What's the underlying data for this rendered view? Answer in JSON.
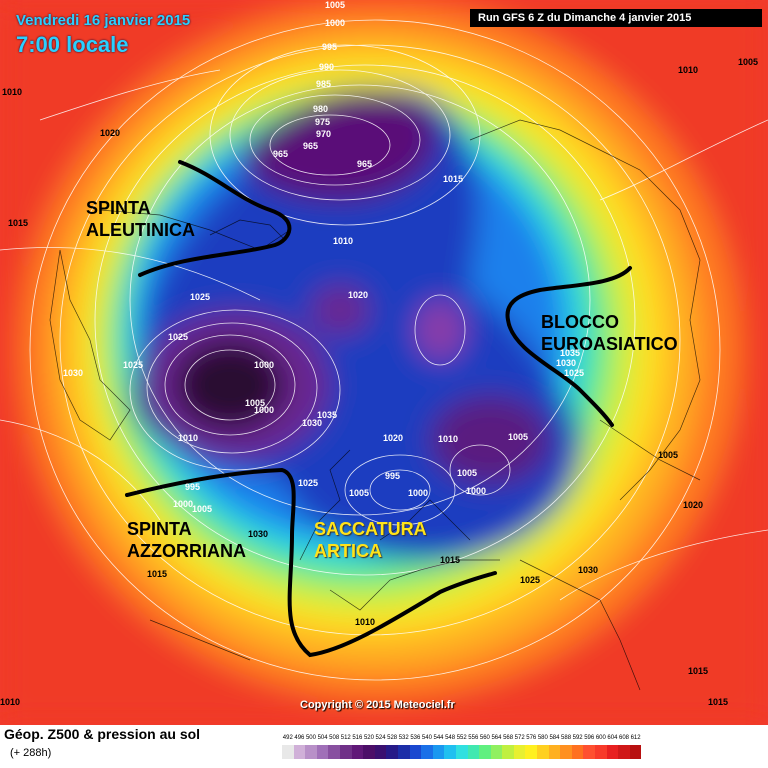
{
  "header": {
    "date": "Vendredi 16 janvier 2015",
    "time": "7:00 locale",
    "run": "Run GFS 6 Z du Dimanche 4 janvier 2015"
  },
  "regions": {
    "aleutian": [
      "SPINTA",
      "ALEUTINICA"
    ],
    "azores": [
      "SPINTA",
      "AZZORRIANA"
    ],
    "arctic": [
      "SACCATURA",
      "ARTICA"
    ],
    "eurasian": [
      "BLOCCO",
      "EUROASIATICO"
    ]
  },
  "pressure_labels": [
    "1010",
    "1005",
    "1000",
    "995",
    "990",
    "985",
    "980",
    "975",
    "970",
    "965",
    "965",
    "965",
    "1020",
    "1015",
    "1010",
    "1015",
    "1010",
    "1005",
    "1025",
    "1020",
    "1025",
    "1030",
    "1025",
    "1000",
    "1005",
    "1000",
    "1010",
    "1035",
    "1030",
    "1020",
    "1010",
    "1005",
    "1025",
    "995",
    "1005",
    "1000",
    "1005",
    "1000",
    "1035",
    "1030",
    "1025",
    "995",
    "1000",
    "1005",
    "1030",
    "1015",
    "1015",
    "1025",
    "1030",
    "1020",
    "1015",
    "1010",
    "1010",
    "1015",
    "1005"
  ],
  "copyright": "Copyright © 2015 Meteociel.fr",
  "legend": {
    "title": "Géop. Z500 & pression au sol",
    "subtitle": "(+ 288h)",
    "scale": [
      "492",
      "496",
      "500",
      "504",
      "508",
      "512",
      "516",
      "520",
      "524",
      "528",
      "532",
      "536",
      "540",
      "544",
      "548",
      "552",
      "556",
      "560",
      "564",
      "568",
      "572",
      "576",
      "580",
      "584",
      "588",
      "592",
      "596",
      "600",
      "604",
      "608",
      "612"
    ],
    "colors": [
      "#e8e8e8",
      "#d0b0d8",
      "#b890c8",
      "#a070b8",
      "#8850a0",
      "#703088",
      "#601878",
      "#4c0e68",
      "#3a1070",
      "#261a88",
      "#1c2ea8",
      "#1a48d0",
      "#1a70e8",
      "#1a98f0",
      "#20c0f0",
      "#30e0e0",
      "#40e8b0",
      "#60f080",
      "#90f060",
      "#c0f040",
      "#e8f030",
      "#fff020",
      "#ffd020",
      "#ffb020",
      "#ff9020",
      "#ff7020",
      "#ff5030",
      "#f83a2a",
      "#e82020",
      "#d01818",
      "#b81010"
    ]
  }
}
